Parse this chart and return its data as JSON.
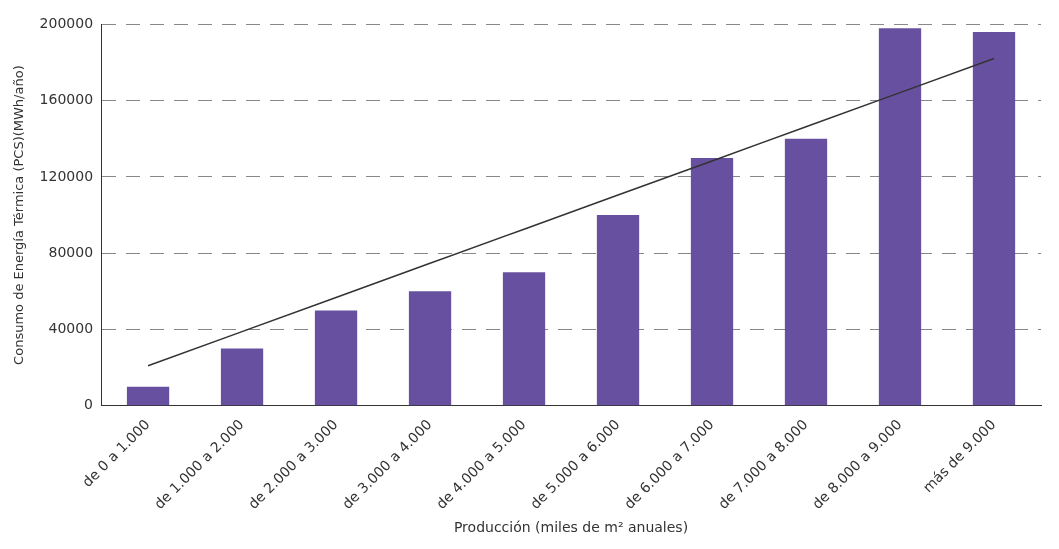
{
  "chart_data": {
    "type": "bar",
    "xlabel": "Producción (miles de m² anuales)",
    "ylabel": "Consumo de Energía Térmica (PCS)(MWh/año)",
    "categories": [
      "de 0 a 1.000",
      "de 1.000 a 2.000",
      "de 2.000 a 3.000",
      "de 3.000 a 4.000",
      "de 4.000 a 5.000",
      "de 5.000 a 6.000",
      "de 6.000 a 7.000",
      "de 7.000 a 8.000",
      "de 8.000 a 9.000",
      "más de 9.000"
    ],
    "series": [
      {
        "color": "#6750a0",
        "values": [
          10000,
          30000,
          50000,
          60000,
          70000,
          100000,
          130000,
          140000,
          198000,
          196000
        ]
      },
      {
        "type": "line",
        "color": "#333333",
        "values": [
          21000,
          38900,
          56800,
          74700,
          92600,
          110500,
          128400,
          146300,
          164200,
          182100
        ]
      }
    ],
    "ylim": [
      0,
      200000
    ],
    "yticks": [
      0,
      40000,
      80000,
      120000,
      160000,
      200000
    ],
    "grid": "y",
    "line_style": "solid",
    "marker": "none",
    "legend": false
  }
}
